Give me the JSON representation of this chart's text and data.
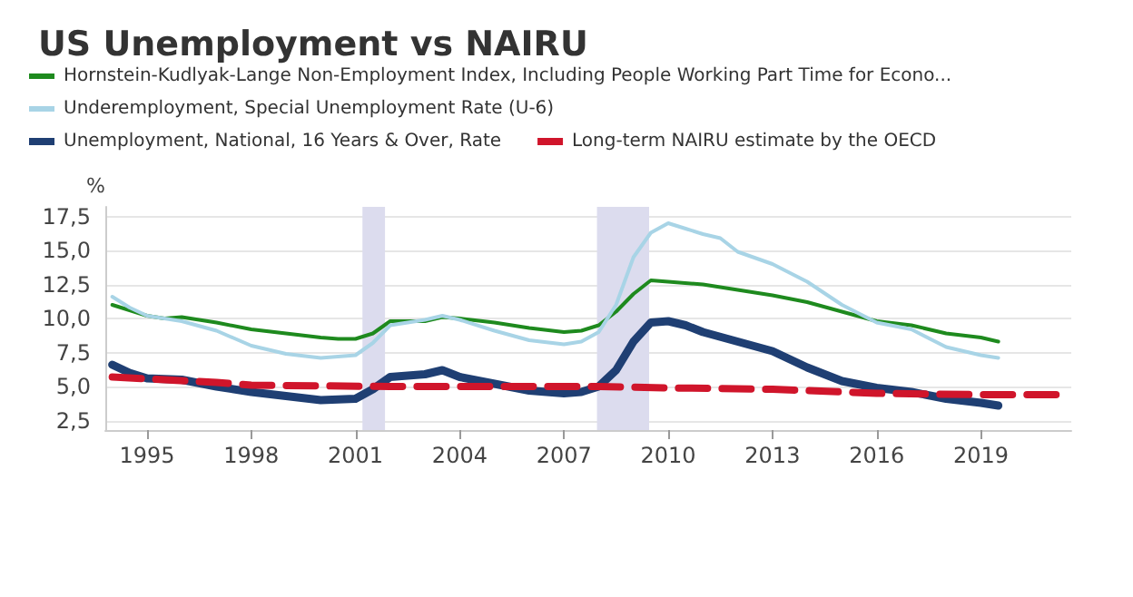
{
  "chart_data": {
    "type": "line",
    "title": "US Unemployment vs NAIRU",
    "ylabel": "%",
    "xlim": [
      1993.8,
      2021.6
    ],
    "xticks": [
      1995,
      1998,
      2001,
      2004,
      2007,
      2010,
      2013,
      2016,
      2019
    ],
    "ylim": [
      1.8,
      18.2
    ],
    "yticks": [
      {
        "value": 2.5,
        "label": "2,5"
      },
      {
        "value": 5,
        "label": "5,0"
      },
      {
        "value": 7.5,
        "label": "7,5"
      },
      {
        "value": 10,
        "label": "10,0"
      },
      {
        "value": 12.5,
        "label": "12,5"
      },
      {
        "value": 15,
        "label": "15,0"
      },
      {
        "value": 17.5,
        "label": "17,5"
      }
    ],
    "grid": "y",
    "legend": "top left",
    "line_style": "solid",
    "bands": [
      {
        "axis": "x",
        "from": 2001.2,
        "to": 2001.85,
        "color": "#dcdcee"
      },
      {
        "axis": "x",
        "from": 2007.95,
        "to": 2009.45,
        "color": "#dcdcee"
      }
    ],
    "series": [
      {
        "name": "Hornstein-Kudlyak-Lange Non-Employment Index, Including People Working Part Time for Econo...",
        "color": "#1e8a1e",
        "x": [
          1994,
          1994.5,
          1995,
          1995.5,
          1996,
          1997,
          1998,
          1999,
          2000,
          2000.5,
          2001,
          2001.5,
          2002,
          2003,
          2003.5,
          2004,
          2005,
          2006,
          2007,
          2007.5,
          2008,
          2008.5,
          2009,
          2009.5,
          2010,
          2011,
          2012,
          2013,
          2014,
          2015,
          2016,
          2017,
          2018,
          2019,
          2019.5
        ],
        "values": [
          11.0,
          10.6,
          10.2,
          10.0,
          10.1,
          9.7,
          9.2,
          8.9,
          8.6,
          8.5,
          8.5,
          8.9,
          9.8,
          9.8,
          10.1,
          10.0,
          9.7,
          9.3,
          9.0,
          9.1,
          9.5,
          10.5,
          11.8,
          12.8,
          12.7,
          12.5,
          12.1,
          11.7,
          11.2,
          10.5,
          9.8,
          9.5,
          8.9,
          8.6,
          8.3
        ]
      },
      {
        "name": "Underemployment, Special Unemployment Rate (U-6)",
        "color": "#a8d4e6",
        "x": [
          1994,
          1994.5,
          1995,
          1996,
          1997,
          1998,
          1999,
          2000,
          2001,
          2001.5,
          2002,
          2003,
          2003.5,
          2004,
          2005,
          2006,
          2007,
          2007.5,
          2008,
          2008.5,
          2009,
          2009.5,
          2010,
          2010.5,
          2011,
          2011.5,
          2012,
          2013,
          2014,
          2015,
          2016,
          2017,
          2018,
          2019,
          2019.5
        ],
        "values": [
          11.6,
          10.8,
          10.2,
          9.8,
          9.1,
          8.0,
          7.4,
          7.1,
          7.3,
          8.2,
          9.5,
          9.9,
          10.2,
          9.9,
          9.1,
          8.4,
          8.1,
          8.3,
          9.0,
          11.0,
          14.5,
          16.3,
          17.0,
          16.6,
          16.2,
          15.9,
          14.9,
          14.0,
          12.7,
          11.0,
          9.7,
          9.2,
          7.9,
          7.3,
          7.1
        ]
      },
      {
        "name": "Unemployment, National, 16 Years & Over, Rate",
        "color": "#1f3f73",
        "x": [
          1994,
          1994.5,
          1995,
          1996,
          1997,
          1998,
          1999,
          2000,
          2001,
          2001.5,
          2002,
          2003,
          2003.5,
          2004,
          2005,
          2006,
          2007,
          2007.5,
          2008,
          2008.5,
          2009,
          2009.5,
          2010,
          2010.5,
          2011,
          2012,
          2013,
          2014,
          2015,
          2016,
          2017,
          2018,
          2019,
          2019.5
        ],
        "values": [
          6.6,
          6.0,
          5.6,
          5.5,
          5.0,
          4.6,
          4.3,
          4.0,
          4.1,
          4.8,
          5.7,
          5.9,
          6.2,
          5.7,
          5.2,
          4.7,
          4.5,
          4.6,
          5.0,
          6.2,
          8.3,
          9.7,
          9.8,
          9.5,
          9.0,
          8.3,
          7.6,
          6.4,
          5.4,
          4.9,
          4.6,
          4.1,
          3.8,
          3.6
        ]
      },
      {
        "name": "Long-term NAIRU estimate by the OECD",
        "color": "#d0152b",
        "line_style": "dashed",
        "x": [
          1994,
          1997,
          1998,
          2002,
          2008,
          2010,
          2013,
          2016,
          2019,
          2021.3
        ],
        "values": [
          5.7,
          5.3,
          5.1,
          5.0,
          5.0,
          4.9,
          4.8,
          4.5,
          4.4,
          4.4
        ]
      }
    ]
  }
}
